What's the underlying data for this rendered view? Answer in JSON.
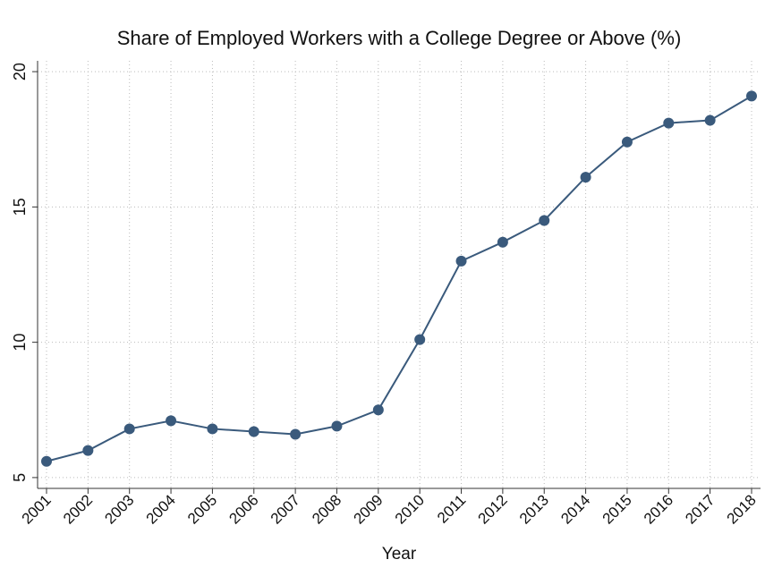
{
  "chart_data": {
    "type": "line",
    "title": "Share of Employed Workers with a College Degree or Above (%)",
    "x_label": "Year",
    "categories": [
      "2001",
      "2002",
      "2003",
      "2004",
      "2005",
      "2006",
      "2007",
      "2008",
      "2009",
      "2010",
      "2011",
      "2012",
      "2013",
      "2014",
      "2015",
      "2016",
      "2017",
      "2018"
    ],
    "values": [
      5.6,
      6.0,
      6.8,
      7.1,
      6.8,
      6.7,
      6.6,
      6.9,
      7.5,
      10.1,
      13.0,
      13.7,
      14.5,
      16.1,
      17.4,
      18.1,
      18.2,
      19.1
    ],
    "color": "#3a5a7c",
    "ylim": [
      4.6,
      20.4
    ],
    "yticks": [
      5,
      10,
      15,
      20
    ],
    "grid": true
  }
}
